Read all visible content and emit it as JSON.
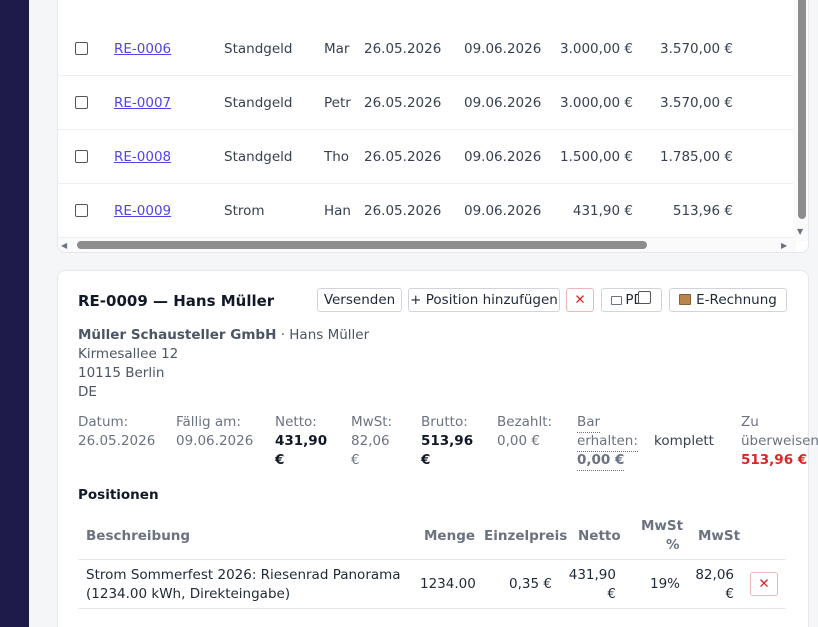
{
  "invoice_rows": [
    {
      "id": "RE-0006",
      "type": "Standgeld",
      "customer": "Mar",
      "date": "26.05.2026",
      "due": "09.06.2026",
      "netto": "3.000,00 €",
      "brutto": "3.570,00 €"
    },
    {
      "id": "RE-0007",
      "type": "Standgeld",
      "customer": "Petr",
      "date": "26.05.2026",
      "due": "09.06.2026",
      "netto": "3.000,00 €",
      "brutto": "3.570,00 €"
    },
    {
      "id": "RE-0008",
      "type": "Standgeld",
      "customer": "Tho",
      "date": "26.05.2026",
      "due": "09.06.2026",
      "netto": "1.500,00 €",
      "brutto": "1.785,00 €"
    },
    {
      "id": "RE-0009",
      "type": "Strom",
      "customer": "Han",
      "date": "26.05.2026",
      "due": "09.06.2026",
      "netto": "431,90 €",
      "brutto": "513,96 €"
    }
  ],
  "detail": {
    "title": "RE-0009 — Hans Müller",
    "actions": {
      "send": "Versenden",
      "add_position": "+ Position hinzufügen",
      "delete": "✕",
      "pdf": "PDF",
      "erechnung": "E-Rechnung"
    },
    "address": {
      "company": "Müller Schausteller GmbH",
      "contact": " · Hans Müller",
      "street": "Kirmesallee 12",
      "city": "10115 Berlin",
      "country": "DE"
    },
    "summary": {
      "datum_label": "Datum:",
      "datum": "26.05.2026",
      "faellig_label": "Fällig am:",
      "faellig": "09.06.2026",
      "netto_label": "Netto:",
      "netto_l1": "431,90",
      "netto_l2": "€",
      "mwst_label": "MwSt:",
      "mwst_l1": "82,06",
      "mwst_l2": "€",
      "brutto_label": "Brutto:",
      "brutto_l1": "513,96",
      "brutto_l2": "€",
      "bezahlt_label": "Bezahlt:",
      "bezahlt": "0,00 €",
      "bar_l1": "Bar",
      "bar_l2": "erhalten:",
      "bar_value": "0,00 €",
      "komplett_label": "komplett",
      "zu_l1": "Zu",
      "zu_l2": "überweisen:",
      "zu_value": "513,96 €"
    },
    "positions_title": "Positionen",
    "positions_headers": {
      "beschreibung": "Beschreibung",
      "menge": "Menge",
      "einzelpreis": "Einzelpreis",
      "netto": "Netto",
      "mwst_pct_l1": "MwSt",
      "mwst_pct_l2": "%",
      "mwst": "MwSt"
    },
    "positions": [
      {
        "desc_l1": "Strom Sommerfest 2026: Riesenrad Panorama",
        "desc_l2": "(1234.00 kWh, Direkteingabe)",
        "menge": "1234.00",
        "einzelpreis": "0,35 €",
        "netto_l1": "431,90",
        "netto_l2": "€",
        "mwst_pct": "19%",
        "mwst_l1": "82,06",
        "mwst_l2": "€",
        "delete": "✕"
      }
    ]
  },
  "colors": {
    "sidebar": "#1e1b4b",
    "link": "#4f46e5",
    "danger": "#dc2626"
  }
}
